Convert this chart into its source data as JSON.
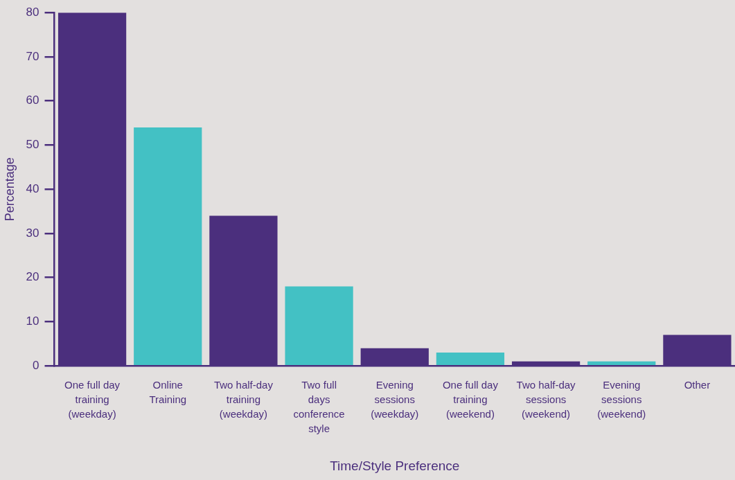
{
  "chart_data": {
    "type": "bar",
    "xlabel": "Time/Style Preference",
    "ylabel": "Percentage",
    "categories": [
      "One full day training (weekday)",
      "Online Training",
      "Two half-day training (weekday)",
      "Two full days conference style",
      "Evening sessions (weekday)",
      "One full day training (weekend)",
      "Two half-day sessions (weekend)",
      "Evening sessions (weekend)",
      "Other"
    ],
    "values": [
      80,
      54,
      34,
      18,
      4,
      3,
      1,
      1,
      7
    ],
    "colors": [
      "#4b2f7d",
      "#43c1c4",
      "#4b2f7d",
      "#43c1c4",
      "#4b2f7d",
      "#43c1c4",
      "#4b2f7d",
      "#43c1c4",
      "#4b2f7d"
    ],
    "ylim": [
      0,
      80
    ],
    "yticks": [
      0,
      10,
      20,
      30,
      40,
      50,
      60,
      70,
      80
    ],
    "grid": false,
    "legend": false
  }
}
